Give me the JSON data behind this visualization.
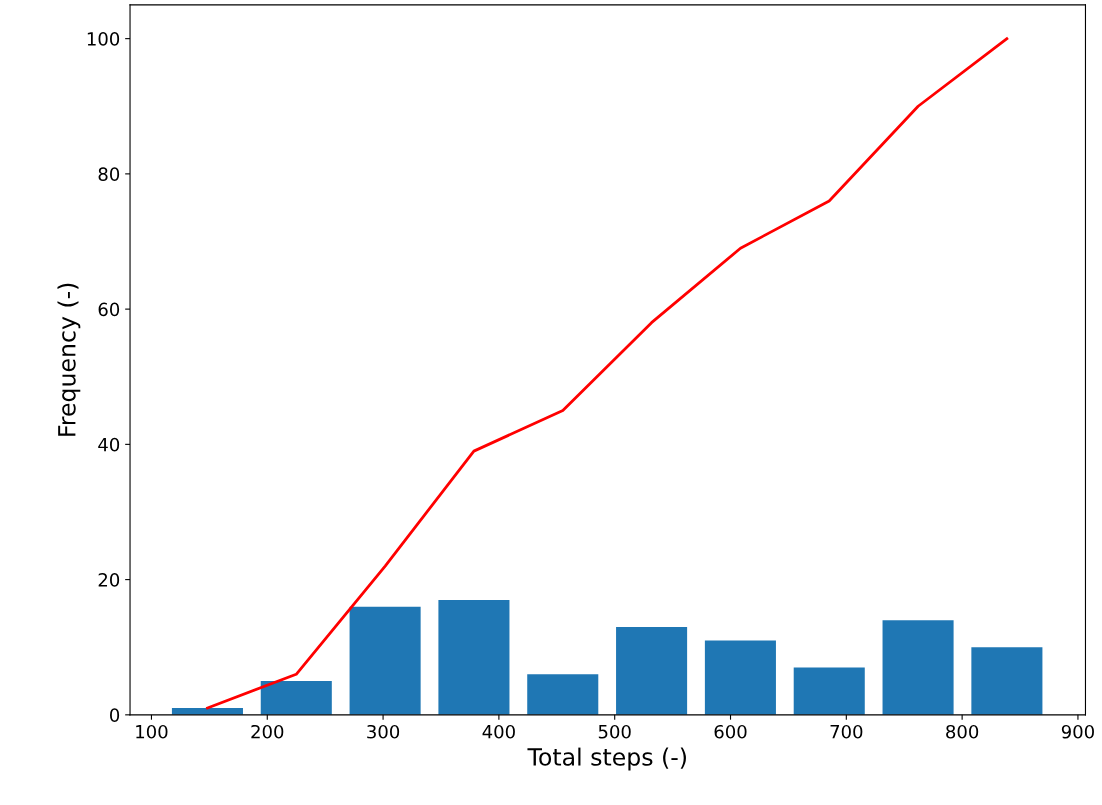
{
  "chart_data": {
    "type": "histogram",
    "xlabel": "Total steps (-)",
    "ylabel": "Frequency (-)",
    "series": [
      {
        "bins": [
          110,
          186.7,
          263.4,
          340.1,
          416.8,
          493.5,
          570.2,
          646.9,
          723.6,
          800.3,
          877
        ],
        "values": [
          1,
          5,
          16,
          17,
          6,
          13,
          11,
          7,
          14,
          10
        ],
        "color": "#1f77b4"
      },
      {
        "type": "line",
        "x": [
          148.4,
          225,
          301.8,
          378.4,
          455.2,
          531.8,
          608.6,
          685.2,
          762,
          838.6
        ],
        "values": [
          1,
          6,
          22,
          39,
          45,
          58,
          69,
          76,
          90,
          100
        ],
        "color": "#ff0000"
      }
    ],
    "xlim": [
      81.5,
      906.5
    ],
    "xticks": [
      100,
      200,
      300,
      400,
      500,
      600,
      700,
      800,
      900
    ],
    "ylim": [
      0,
      105
    ],
    "yticks": [
      0,
      20,
      40,
      60,
      80,
      100
    ],
    "grid": false,
    "legend": false
  }
}
